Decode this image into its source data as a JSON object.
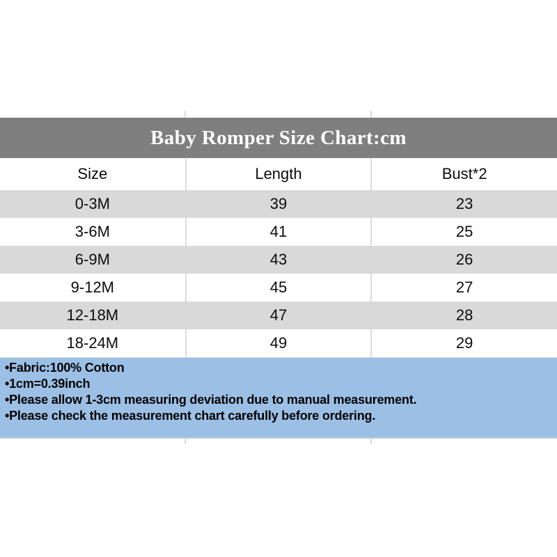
{
  "title_band": {
    "title": "Baby Romper Size Chart:cm"
  },
  "size_table": {
    "columns": [
      "Size",
      "Length",
      "Bust*2"
    ],
    "rows": [
      {
        "size": "0-3M",
        "length": "39",
        "bust": "23"
      },
      {
        "size": "3-6M",
        "length": "41",
        "bust": "25"
      },
      {
        "size": "6-9M",
        "length": "43",
        "bust": "26"
      },
      {
        "size": "9-12M",
        "length": "45",
        "bust": "27"
      },
      {
        "size": "12-18M",
        "length": "47",
        "bust": "28"
      },
      {
        "size": "18-24M",
        "length": "49",
        "bust": "29"
      }
    ]
  },
  "notes": {
    "items": [
      "•Fabric:100% Cotton",
      "•1cm=0.39inch",
      "•Please allow 1-3cm measuring deviation due to manual measurement.",
      "•Please check the measurement chart carefully before ordering."
    ]
  },
  "colors": {
    "title_band_bg": "#7f7f7f",
    "title_text": "#ffffff",
    "row_alt_bg": "#d9d9d9",
    "row_bg": "#ffffff",
    "notes_bg": "#9cc0e5",
    "body_text": "#000000"
  },
  "chart_data": {
    "type": "table",
    "title": "Baby Romper Size Chart:cm",
    "units": "cm",
    "columns": [
      "Size",
      "Length",
      "Bust*2"
    ],
    "rows": [
      [
        "0-3M",
        39,
        23
      ],
      [
        "3-6M",
        41,
        25
      ],
      [
        "6-9M",
        43,
        26
      ],
      [
        "9-12M",
        45,
        27
      ],
      [
        "12-18M",
        47,
        28
      ],
      [
        "18-24M",
        49,
        29
      ]
    ]
  }
}
